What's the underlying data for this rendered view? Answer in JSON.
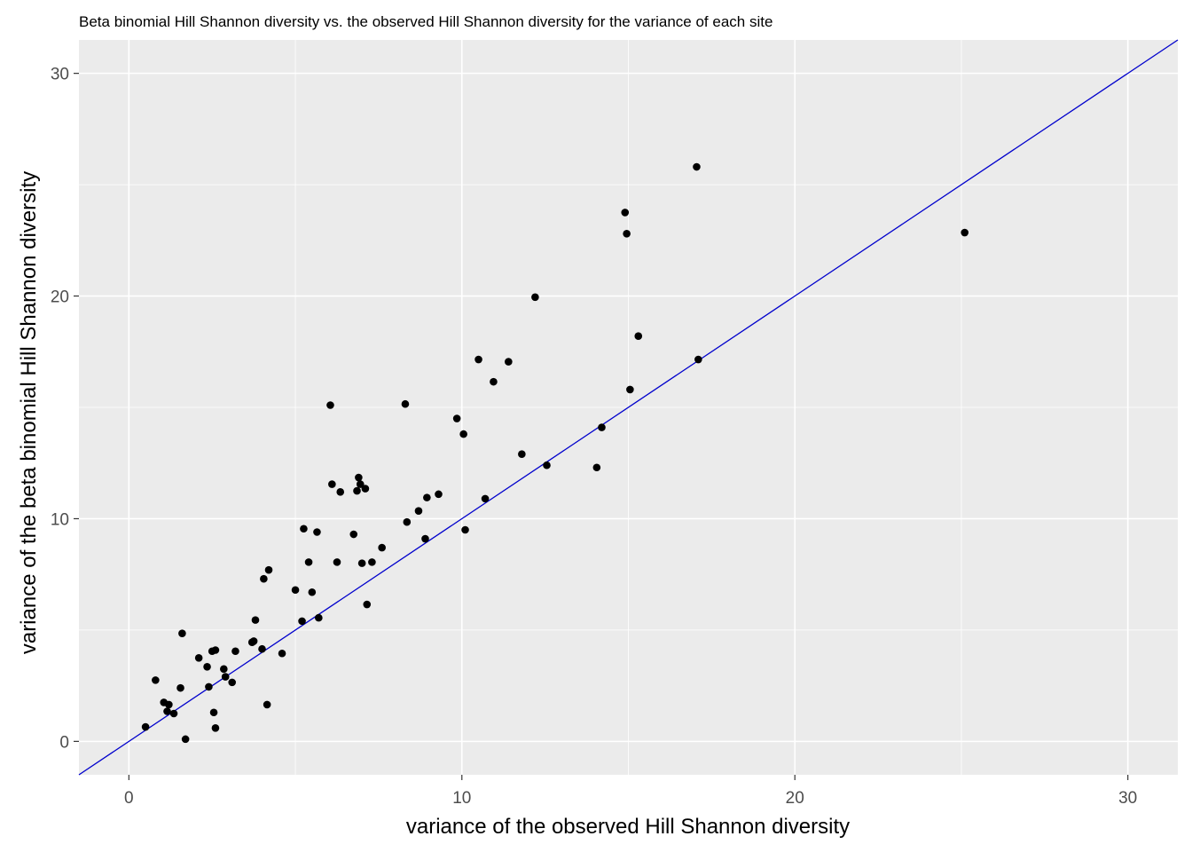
{
  "chart_data": {
    "type": "scatter",
    "title": "Beta binomial Hill Shannon diversity vs. the observed Hill Shannon diversity for the variance of each site",
    "xlabel": "variance of the observed Hill Shannon diversity",
    "ylabel": "variance of the beta binomial Hill Shannon diversity",
    "xlim": [
      -1.5,
      31.5
    ],
    "ylim": [
      -1.5,
      31.5
    ],
    "xticks": [
      0,
      10,
      20,
      30
    ],
    "yticks": [
      0,
      10,
      20,
      30
    ],
    "xtick_labels": [
      "0",
      "10",
      "20",
      "30"
    ],
    "ytick_labels": [
      "0",
      "10",
      "20",
      "30"
    ],
    "grid": true,
    "background_color": "#ebebeb",
    "point_color": "#000000",
    "reference_line": {
      "type": "identity",
      "slope": 1,
      "intercept": 0,
      "color": "#0000cc"
    },
    "x": [
      0.5,
      0.8,
      1.05,
      1.15,
      1.2,
      1.35,
      1.55,
      1.6,
      1.7,
      2.1,
      2.35,
      2.4,
      2.5,
      2.55,
      2.6,
      2.6,
      2.85,
      2.9,
      3.1,
      3.2,
      3.7,
      3.75,
      3.8,
      4.0,
      4.05,
      4.15,
      4.2,
      4.6,
      5.0,
      5.2,
      5.25,
      5.4,
      5.5,
      5.65,
      5.7,
      6.05,
      6.1,
      6.25,
      6.35,
      6.75,
      6.85,
      6.9,
      6.95,
      7.0,
      7.1,
      7.15,
      7.3,
      7.6,
      8.3,
      8.35,
      8.7,
      8.9,
      8.95,
      9.3,
      9.85,
      10.05,
      10.1,
      10.5,
      10.7,
      10.95,
      11.4,
      11.8,
      12.2,
      12.55,
      14.05,
      14.2,
      14.9,
      14.95,
      15.05,
      15.3,
      17.05,
      17.1,
      25.1
    ],
    "y": [
      0.65,
      2.75,
      1.75,
      1.35,
      1.65,
      1.25,
      2.4,
      4.85,
      0.1,
      3.75,
      3.35,
      2.45,
      4.05,
      1.3,
      4.1,
      0.6,
      3.25,
      2.9,
      2.65,
      4.05,
      4.45,
      4.5,
      5.45,
      4.15,
      7.3,
      1.65,
      7.7,
      3.95,
      6.8,
      5.4,
      9.55,
      8.05,
      6.7,
      9.4,
      5.55,
      15.1,
      11.55,
      8.05,
      11.2,
      9.3,
      11.25,
      11.85,
      11.55,
      8.0,
      11.35,
      6.15,
      8.05,
      8.7,
      15.15,
      9.85,
      10.35,
      9.1,
      10.95,
      11.1,
      14.5,
      13.8,
      9.5,
      17.15,
      10.9,
      16.15,
      17.05,
      12.9,
      19.95,
      12.4,
      12.3,
      14.1,
      23.75,
      22.8,
      15.8,
      18.2,
      25.8,
      17.15,
      22.85
    ]
  }
}
